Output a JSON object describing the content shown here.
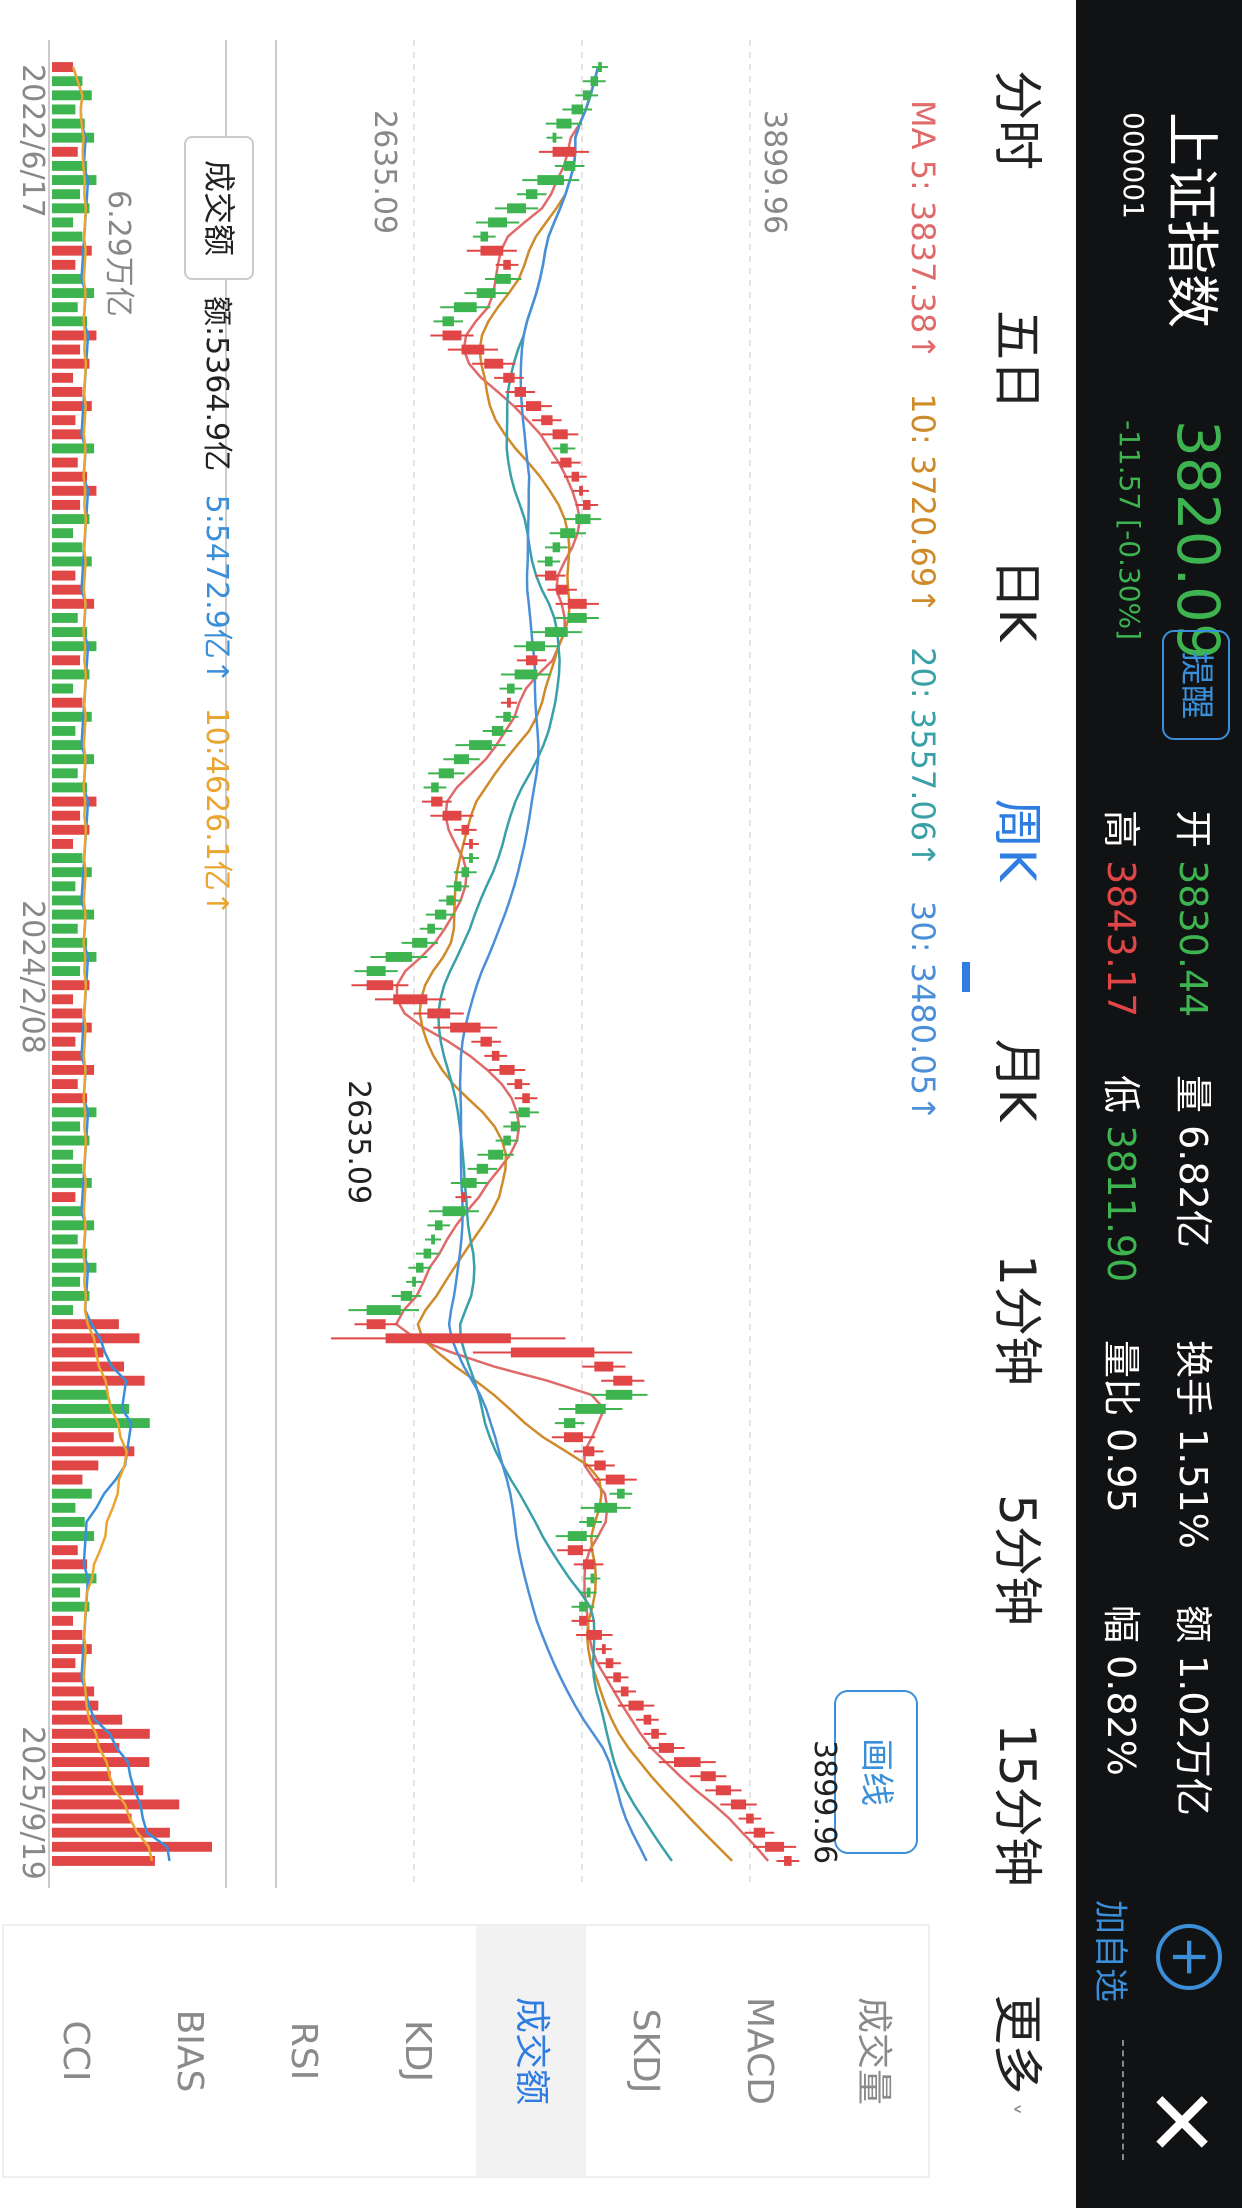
{
  "header": {
    "title": "上证指数",
    "code": "000001",
    "price": "3820.09",
    "alert_label": "提醒",
    "change": "-11.57 [-0.30%]",
    "stats": [
      {
        "label": "开",
        "value": "3830.44",
        "color": "#3db450"
      },
      {
        "label": "高",
        "value": "3843.17",
        "color": "#e04646"
      },
      {
        "label": "量",
        "value": "6.82亿",
        "color": "#ffffff"
      },
      {
        "label": "低",
        "value": "3811.90",
        "color": "#3db450"
      },
      {
        "label": "换手",
        "value": "1.51%",
        "color": "#ffffff"
      },
      {
        "label": "量比",
        "value": "0.95",
        "color": "#ffffff"
      },
      {
        "label": "额",
        "value": "1.02万亿",
        "color": "#ffffff"
      },
      {
        "label": "幅",
        "value": "0.82%",
        "color": "#ffffff"
      }
    ],
    "add_watch_label": "加自选"
  },
  "tabs": [
    "分时",
    "五日",
    "日K",
    "周K",
    "月K",
    "1分钟",
    "5分钟",
    "15分钟",
    "更多"
  ],
  "active_tab": "周K",
  "ma": {
    "ma5": "MA 5: 3837.38↑",
    "ma10": "10: 3720.69↑",
    "ma20": "20: 3557.06↑",
    "ma30": "30: 3480.05↑"
  },
  "draw_line_label": "画线",
  "chart": {
    "y_max_label": "3899.96",
    "y_min_label": "2635.09",
    "max_marker": "3899.96",
    "min_marker": "2635.09"
  },
  "turnover": {
    "button_label": "成交额",
    "value_text": "额:5364.9亿",
    "ma5_text": "5:5472.9亿↑",
    "ma10_text": "10:4626.1亿↑",
    "y_max_label": "6.29万亿"
  },
  "dates": [
    "2022/6/17",
    "2024/2/08",
    "2025/9/19"
  ],
  "indicators": [
    "成交量",
    "MACD",
    "SKDJ",
    "成交额",
    "KDJ",
    "RSI",
    "BIAS",
    "CCI"
  ],
  "active_indicator": "成交额",
  "colors": {
    "up": "#e04646",
    "down": "#3db450",
    "ma5": "#e06a6a",
    "ma10": "#cf8a2a",
    "ma20": "#3aa0a8",
    "ma30": "#4a8fd8",
    "accent": "#2f7de1"
  },
  "chart_data": {
    "type": "candlestick",
    "period": "weekly",
    "x_range": [
      "2022/6/17",
      "2025/9/19"
    ],
    "ylim": [
      2635.09,
      3899.96
    ],
    "close_series": [
      3310,
      3290,
      3270,
      3240,
      3200,
      3190,
      3250,
      3220,
      3150,
      3120,
      3070,
      3020,
      3000,
      3060,
      3080,
      3040,
      2990,
      2930,
      2900,
      2950,
      3010,
      3060,
      3090,
      3120,
      3160,
      3190,
      3230,
      3210,
      3240,
      3260,
      3270,
      3290,
      3250,
      3210,
      3190,
      3170,
      3200,
      3230,
      3280,
      3230,
      3170,
      3120,
      3150,
      3090,
      3070,
      3080,
      3060,
      3030,
      2970,
      2930,
      2890,
      2870,
      2900,
      2950,
      2970,
      2980,
      2970,
      2950,
      2930,
      2910,
      2880,
      2860,
      2820,
      2750,
      2700,
      2770,
      2860,
      2920,
      3000,
      3030,
      3050,
      3090,
      3110,
      3130,
      3100,
      3080,
      3060,
      3020,
      2990,
      2950,
      2960,
      2900,
      2880,
      2870,
      2850,
      2830,
      2820,
      2790,
      2700,
      2750,
      3080,
      3300,
      3350,
      3400,
      3330,
      3250,
      3220,
      3270,
      3300,
      3330,
      3380,
      3360,
      3300,
      3280,
      3230,
      3270,
      3300,
      3290,
      3280,
      3260,
      3280,
      3320,
      3330,
      3350,
      3370,
      3390,
      3430,
      3450,
      3470,
      3510,
      3580,
      3620,
      3660,
      3700,
      3720,
      3750,
      3800,
      3820
    ],
    "turnover_ylim": [
      0,
      6.29
    ],
    "turnover_unit": "万亿"
  }
}
